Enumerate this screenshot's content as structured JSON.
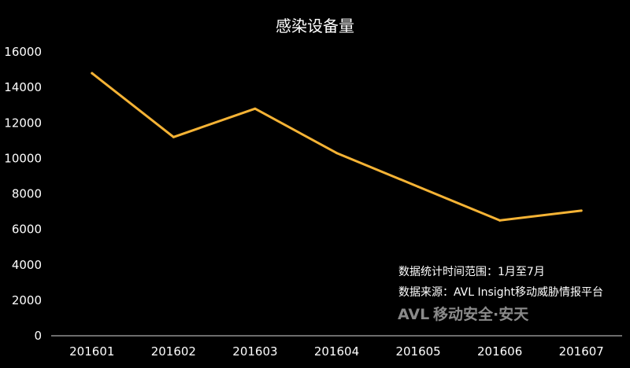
{
  "chart_data": {
    "type": "line",
    "title": "感染设备量",
    "xlabel": "",
    "ylabel": "",
    "categories": [
      "201601",
      "201602",
      "201603",
      "201604",
      "201605",
      "201606",
      "201607"
    ],
    "series": [
      {
        "values": [
          14800,
          11200,
          12800,
          10300,
          8400,
          6500,
          7050
        ]
      }
    ],
    "ylim": [
      0,
      16000
    ],
    "yticks": [
      0,
      2000,
      4000,
      6000,
      8000,
      10000,
      12000,
      14000,
      16000
    ],
    "grid": false,
    "line_color": "#F5B335"
  },
  "annotations": {
    "range_note": "数据统计时间范围：1月至7月",
    "source_note": "数据来源：AVL Insight移动威胁情报平台"
  },
  "watermark": {
    "logo_text": "AVL",
    "text": "移动安全·安天"
  }
}
